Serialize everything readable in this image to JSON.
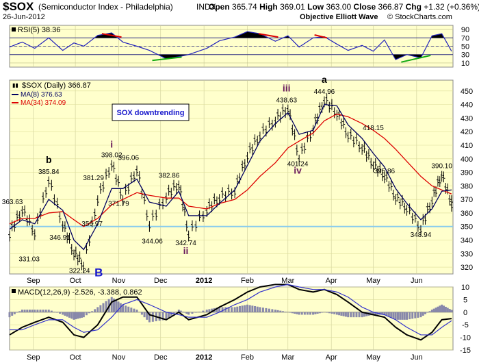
{
  "header": {
    "symbol": "$SOX",
    "description": "(Semiconductor Index - Philadelphia)",
    "exchange": "INDX",
    "date": "26-Jun-2012",
    "open_label": "Open",
    "open": "365.74",
    "high_label": "High",
    "high": "369.01",
    "low_label": "Low",
    "low": "363.00",
    "close_label": "Close",
    "close": "366.87",
    "chg_label": "Chg",
    "chg": "+1.32 (+0.36%)",
    "chg_arrow": "▲",
    "watermark": "Objective Elliott Wave",
    "credit": "© StockCharts.com"
  },
  "colors": {
    "panel_bg": "#ffffcc",
    "rsi_line": "#2222bb",
    "ma_fast": "#000060",
    "ma_slow": "#dd0000",
    "support_line": "#88ccee",
    "divergence_bear": "#dd0000",
    "divergence_bull": "#11aa11",
    "wave_purple": "#6a1b5c",
    "wave_blue": "#1515cc",
    "macd_hist": "#8888aa"
  },
  "chart_data": [
    {
      "type": "line",
      "panel": "rsi",
      "title": "RSI(5) 38.36",
      "ylim": [
        0,
        100
      ],
      "levels": [
        30,
        70
      ],
      "ticks": [
        10,
        30,
        50,
        70,
        90
      ],
      "x": [
        "2011-08-15",
        "2011-08-24",
        "2011-09-02",
        "2011-09-12",
        "2011-09-22",
        "2011-09-30",
        "2011-10-07",
        "2011-10-17",
        "2011-10-27",
        "2011-11-04",
        "2011-11-14",
        "2011-11-23",
        "2011-12-05",
        "2011-12-14",
        "2011-12-21",
        "2012-01-03",
        "2012-01-12",
        "2012-01-23",
        "2012-02-01",
        "2012-02-10",
        "2012-02-21",
        "2012-03-01",
        "2012-03-09",
        "2012-03-19",
        "2012-03-27",
        "2012-04-05",
        "2012-04-13",
        "2012-04-23",
        "2012-05-01",
        "2012-05-09",
        "2012-05-17",
        "2012-05-25",
        "2012-06-04",
        "2012-06-12",
        "2012-06-19",
        "2012-06-26"
      ],
      "values": [
        48,
        60,
        45,
        70,
        40,
        58,
        50,
        76,
        82,
        60,
        50,
        40,
        20,
        25,
        30,
        45,
        63,
        72,
        85,
        80,
        62,
        75,
        48,
        70,
        73,
        55,
        40,
        52,
        38,
        65,
        18,
        30,
        22,
        75,
        80,
        38
      ],
      "annotations": [
        {
          "type": "bearish",
          "from": [
            "2011-10-20",
            80
          ],
          "to": [
            "2011-11-03",
            72
          ]
        },
        {
          "type": "bearish",
          "from": [
            "2012-02-09",
            80
          ],
          "to": [
            "2012-02-23",
            72
          ]
        },
        {
          "type": "bearish",
          "from": [
            "2012-03-20",
            77
          ],
          "to": [
            "2012-03-29",
            70
          ]
        },
        {
          "type": "bullish",
          "from": [
            "2011-11-25",
            16
          ],
          "to": [
            "2011-12-16",
            24
          ]
        },
        {
          "type": "bullish",
          "from": [
            "2012-05-21",
            12
          ],
          "to": [
            "2012-06-11",
            28
          ]
        }
      ]
    },
    {
      "type": "candlestick",
      "panel": "price",
      "title": "$SOX (Daily) 366.87",
      "legend": [
        {
          "name": "MA(8) 376.63",
          "color": "#000060"
        },
        {
          "name": "MA(34) 374.09",
          "color": "#dd0000"
        }
      ],
      "ylim": [
        315,
        458
      ],
      "yticks": [
        320,
        330,
        340,
        350,
        360,
        370,
        380,
        390,
        400,
        410,
        420,
        430,
        440,
        450
      ],
      "xticks": [
        "Sep",
        "Oct",
        "Nov",
        "Dec",
        "2012",
        "Feb",
        "Mar",
        "Apr",
        "May",
        "Jun"
      ],
      "support_line": 350,
      "textbox": "SOX downtrending",
      "x": [
        "2011-08-15",
        "2011-08-24",
        "2011-09-02",
        "2011-09-12",
        "2011-09-22",
        "2011-09-30",
        "2011-10-07",
        "2011-10-17",
        "2011-10-27",
        "2011-11-04",
        "2011-11-14",
        "2011-11-23",
        "2011-12-05",
        "2011-12-14",
        "2011-12-21",
        "2012-01-03",
        "2012-01-12",
        "2012-01-23",
        "2012-02-01",
        "2012-02-10",
        "2012-02-21",
        "2012-03-01",
        "2012-03-09",
        "2012-03-19",
        "2012-03-27",
        "2012-04-05",
        "2012-04-13",
        "2012-04-23",
        "2012-05-01",
        "2012-05-09",
        "2012-05-17",
        "2012-05-25",
        "2012-06-04",
        "2012-06-12",
        "2012-06-19",
        "2012-06-26"
      ],
      "close": [
        345,
        363,
        346,
        385,
        352,
        331,
        322,
        371,
        397,
        371,
        393,
        352,
        373,
        382,
        345,
        363,
        372,
        377,
        403,
        418,
        429,
        438,
        401,
        423,
        444,
        434,
        418,
        409,
        396,
        388,
        372,
        364,
        349,
        370,
        389,
        367
      ],
      "ma8": [
        348,
        355,
        352,
        370,
        362,
        340,
        333,
        352,
        378,
        378,
        385,
        368,
        365,
        376,
        358,
        358,
        367,
        377,
        395,
        413,
        426,
        434,
        418,
        421,
        440,
        439,
        425,
        415,
        404,
        394,
        378,
        367,
        355,
        363,
        376,
        377
      ],
      "ma34": [
        352,
        356,
        356,
        360,
        361,
        355,
        350,
        356,
        366,
        370,
        375,
        373,
        371,
        371,
        365,
        363,
        367,
        370,
        377,
        387,
        397,
        408,
        413,
        419,
        428,
        433,
        431,
        426,
        421,
        415,
        407,
        398,
        387,
        380,
        377,
        374
      ],
      "labels": [
        {
          "text": "363.63",
          "x": "2011-08-17",
          "y": 363.63
        },
        {
          "text": "331.03",
          "x": "2011-08-29",
          "y": 331.03
        },
        {
          "text": "385.84",
          "x": "2011-09-12",
          "y": 385.84
        },
        {
          "text": "346.91",
          "x": "2011-09-20",
          "y": 346.91
        },
        {
          "text": "322.24",
          "x": "2011-10-04",
          "y": 322.24
        },
        {
          "text": "356.97",
          "x": "2011-10-13",
          "y": 356.97
        },
        {
          "text": "381.29",
          "x": "2011-10-14",
          "y": 381.29
        },
        {
          "text": "398.02",
          "x": "2011-10-27",
          "y": 398.02
        },
        {
          "text": "371.79",
          "x": "2011-11-01",
          "y": 371.79
        },
        {
          "text": "396.06",
          "x": "2011-11-08",
          "y": 396.06
        },
        {
          "text": "344.06",
          "x": "2011-11-25",
          "y": 344.06
        },
        {
          "text": "382.86",
          "x": "2011-12-07",
          "y": 382.86
        },
        {
          "text": "342.74",
          "x": "2011-12-19",
          "y": 342.74
        },
        {
          "text": "438.63",
          "x": "2012-02-29",
          "y": 438.63
        },
        {
          "text": "401.24",
          "x": "2012-03-08",
          "y": 401.24
        },
        {
          "text": "444.96",
          "x": "2012-03-27",
          "y": 444.96
        },
        {
          "text": "418.15",
          "x": "2012-05-01",
          "y": 418.15
        },
        {
          "text": "395.86",
          "x": "2012-05-09",
          "y": 395.86
        },
        {
          "text": "348.94",
          "x": "2012-06-04",
          "y": 348.94
        },
        {
          "text": "390.10",
          "x": "2012-06-19",
          "y": 390.1
        }
      ],
      "wave_labels": [
        {
          "text": "b",
          "color": "#000000",
          "x": "2011-09-12",
          "y": 385.84
        },
        {
          "text": "B",
          "color": "#1515cc",
          "x": "2011-10-04",
          "y": 322.24
        },
        {
          "text": "i",
          "color": "#6a1b5c",
          "x": "2011-10-27",
          "y": 398.02
        },
        {
          "text": "ii",
          "color": "#6a1b5c",
          "x": "2011-12-19",
          "y": 342.74
        },
        {
          "text": "iii",
          "color": "#6a1b5c",
          "x": "2012-02-29",
          "y": 438.63
        },
        {
          "text": "iv",
          "color": "#6a1b5c",
          "x": "2012-03-08",
          "y": 401.24
        },
        {
          "text": "a",
          "color": "#000000",
          "x": "2012-03-27",
          "y": 444.96
        }
      ]
    },
    {
      "type": "line",
      "panel": "macd",
      "title": "MACD(12,26,9)",
      "values_text": "-2.526, -3.388, 0.862",
      "ylim": [
        -15,
        10
      ],
      "yticks": [
        -15,
        -10,
        -5,
        0,
        5,
        10
      ],
      "xticks": [
        "Sep",
        "Oct",
        "Nov",
        "Dec",
        "2012",
        "Feb",
        "Mar",
        "Apr",
        "May",
        "Jun"
      ],
      "x": [
        "2011-08-15",
        "2011-08-24",
        "2011-09-02",
        "2011-09-12",
        "2011-09-22",
        "2011-09-30",
        "2011-10-07",
        "2011-10-17",
        "2011-10-27",
        "2011-11-04",
        "2011-11-14",
        "2011-11-23",
        "2011-12-05",
        "2011-12-14",
        "2011-12-21",
        "2012-01-03",
        "2012-01-12",
        "2012-01-23",
        "2012-02-01",
        "2012-02-10",
        "2012-02-21",
        "2012-03-01",
        "2012-03-09",
        "2012-03-19",
        "2012-03-27",
        "2012-04-05",
        "2012-04-13",
        "2012-04-23",
        "2012-05-01",
        "2012-05-09",
        "2012-05-17",
        "2012-05-25",
        "2012-06-04",
        "2012-06-12",
        "2012-06-19",
        "2012-06-26"
      ],
      "series": [
        {
          "name": "MACD",
          "color": "#000000",
          "values": [
            -9,
            -6,
            -4,
            -2,
            -4,
            -9,
            -10,
            -5,
            4,
            6,
            6,
            -1,
            -3,
            0,
            -3,
            -1,
            2,
            5,
            8,
            10,
            11,
            11,
            9,
            8,
            9,
            7,
            4,
            0,
            -1,
            -2,
            -6,
            -9,
            -11,
            -8,
            -3,
            -2.526
          ]
        },
        {
          "name": "Signal",
          "color": "#3333cc",
          "values": [
            -7,
            -7,
            -5,
            -3,
            -3,
            -6,
            -8,
            -7,
            -2,
            3,
            5,
            3,
            0,
            -1,
            -2,
            -2,
            0,
            3,
            5,
            8,
            10,
            11,
            10,
            9,
            9,
            8,
            6,
            2,
            0,
            -1,
            -3,
            -6,
            -9,
            -9,
            -6,
            -3.388
          ]
        },
        {
          "name": "Histogram",
          "color": "#8888aa",
          "values": [
            -2,
            1,
            1,
            1,
            -1,
            -3,
            -2,
            2,
            6,
            3,
            1,
            -4,
            -3,
            1,
            -1,
            1,
            2,
            2,
            3,
            2,
            1,
            0,
            -1,
            -1,
            0,
            -1,
            -2,
            -2,
            -1,
            -1,
            -3,
            -3,
            -2,
            1,
            3,
            0.862
          ]
        }
      ]
    }
  ]
}
